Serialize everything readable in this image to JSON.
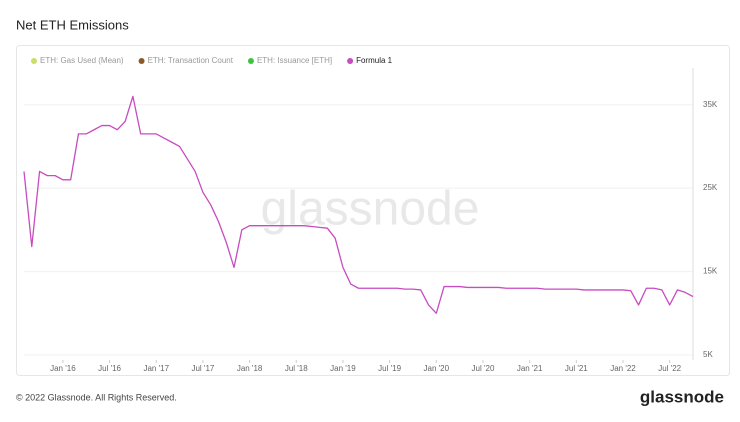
{
  "chart_data": {
    "type": "line",
    "title": "Net ETH Emissions",
    "watermark": "glassnode",
    "copyright": "© 2022 Glassnode. All Rights Reserved.",
    "logo": "glassnode",
    "inactive_legend": [
      {
        "name": "ETH: Gas Used (Mean)",
        "color": "#c8e065"
      },
      {
        "name": "ETH: Transaction Count",
        "color": "#8b5a2b"
      },
      {
        "name": "ETH: Issuance [ETH]",
        "color": "#3cc43c"
      }
    ],
    "x": [
      "2015-08",
      "2015-09",
      "2015-10",
      "2015-11",
      "2015-12",
      "2016-01",
      "2016-02",
      "2016-03",
      "2016-04",
      "2016-05",
      "2016-06",
      "2016-07",
      "2016-08",
      "2016-09",
      "2016-10",
      "2016-11",
      "2016-12",
      "2017-01",
      "2017-02",
      "2017-03",
      "2017-04",
      "2017-05",
      "2017-06",
      "2017-07",
      "2017-08",
      "2017-09",
      "2017-10",
      "2017-11",
      "2017-12",
      "2018-01",
      "2018-02",
      "2018-03",
      "2018-04",
      "2018-05",
      "2018-06",
      "2018-07",
      "2018-08",
      "2018-09",
      "2018-10",
      "2018-11",
      "2018-12",
      "2019-01",
      "2019-02",
      "2019-03",
      "2019-04",
      "2019-05",
      "2019-06",
      "2019-07",
      "2019-08",
      "2019-09",
      "2019-10",
      "2019-11",
      "2019-12",
      "2020-01",
      "2020-02",
      "2020-03",
      "2020-04",
      "2020-05",
      "2020-06",
      "2020-07",
      "2020-08",
      "2020-09",
      "2020-10",
      "2020-11",
      "2020-12",
      "2021-01",
      "2021-02",
      "2021-03",
      "2021-04",
      "2021-05",
      "2021-06",
      "2021-07",
      "2021-08",
      "2021-09",
      "2021-10",
      "2021-11",
      "2021-12",
      "2022-01",
      "2022-02",
      "2022-03",
      "2022-04",
      "2022-05",
      "2022-06",
      "2022-07",
      "2022-08",
      "2022-09",
      "2022-10"
    ],
    "series": [
      {
        "name": "Formula 1",
        "color": "#c84bc0",
        "values": [
          27000,
          18000,
          27000,
          26500,
          26500,
          26000,
          26000,
          31500,
          31500,
          32000,
          32500,
          32500,
          32000,
          33000,
          36000,
          31500,
          31500,
          31500,
          31000,
          30500,
          30000,
          28500,
          27000,
          24500,
          23000,
          21000,
          18500,
          15500,
          20000,
          20500,
          20500,
          20500,
          20500,
          20500,
          20500,
          20500,
          20500,
          20400,
          20300,
          20200,
          19000,
          15500,
          13500,
          13000,
          13000,
          13000,
          13000,
          13000,
          13000,
          12900,
          12900,
          12800,
          11000,
          10000,
          13200,
          13200,
          13200,
          13100,
          13100,
          13100,
          13100,
          13100,
          13000,
          13000,
          13000,
          13000,
          13000,
          12900,
          12900,
          12900,
          12900,
          12900,
          12800,
          12800,
          12800,
          12800,
          12800,
          12800,
          12700,
          11000,
          13000,
          13000,
          12800,
          11000,
          12800,
          12500,
          12000
        ]
      }
    ],
    "xlim": [
      "2015-08",
      "2022-10"
    ],
    "xticks": [
      {
        "value": "2016-01",
        "label": "Jan '16"
      },
      {
        "value": "2016-07",
        "label": "Jul '16"
      },
      {
        "value": "2017-01",
        "label": "Jan '17"
      },
      {
        "value": "2017-07",
        "label": "Jul '17"
      },
      {
        "value": "2018-01",
        "label": "Jan '18"
      },
      {
        "value": "2018-07",
        "label": "Jul '18"
      },
      {
        "value": "2019-01",
        "label": "Jan '19"
      },
      {
        "value": "2019-07",
        "label": "Jul '19"
      },
      {
        "value": "2020-01",
        "label": "Jan '20"
      },
      {
        "value": "2020-07",
        "label": "Jul '20"
      },
      {
        "value": "2021-01",
        "label": "Jan '21"
      },
      {
        "value": "2021-07",
        "label": "Jul '21"
      },
      {
        "value": "2022-01",
        "label": "Jan '22"
      },
      {
        "value": "2022-07",
        "label": "Jul '22"
      }
    ],
    "ylim": [
      4400,
      39400
    ],
    "yticks": [
      {
        "value": 5000,
        "label": "5K"
      },
      {
        "value": 15000,
        "label": "15K"
      },
      {
        "value": 25000,
        "label": "25K"
      },
      {
        "value": 35000,
        "label": "35K"
      }
    ],
    "grid": true
  }
}
